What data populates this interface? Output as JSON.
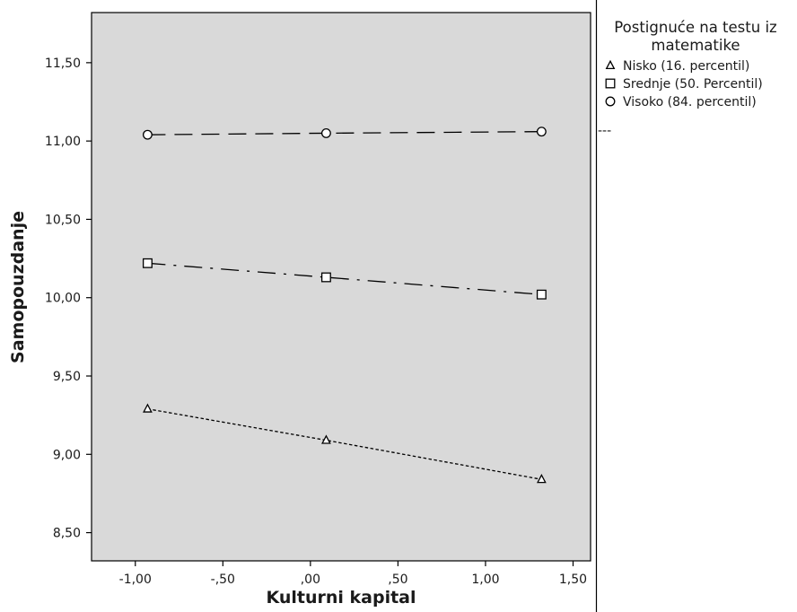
{
  "chart_data": {
    "type": "line",
    "xlabel": "Kulturni kapital",
    "ylabel": "Samopouzdanje",
    "xlim": [
      -1.25,
      1.6
    ],
    "ylim": [
      8.32,
      11.82
    ],
    "x_ticks": [
      -1.0,
      -0.5,
      0.0,
      0.5,
      1.0,
      1.5
    ],
    "x_tick_labels": [
      "-1,00",
      "-,50",
      ",00",
      ",50",
      "1,00",
      "1,50"
    ],
    "y_ticks": [
      8.5,
      9.0,
      9.5,
      10.0,
      10.5,
      11.0,
      11.5
    ],
    "y_tick_labels": [
      "8,50",
      "9,00",
      "9,50",
      "10,00",
      "10,50",
      "11,00",
      "11,50"
    ],
    "x": [
      -0.93,
      0.09,
      1.32
    ],
    "legend": {
      "title_lines": [
        "Postignuće na testu iz",
        "matematike"
      ],
      "placement": "right",
      "extra_entry": "---"
    },
    "series": [
      {
        "name": "Nisko (16. percentil)",
        "marker": "triangle",
        "dash": "dotted",
        "values": [
          9.29,
          9.09,
          8.84
        ]
      },
      {
        "name": "Srednje (50. Percentil)",
        "marker": "square",
        "dash": "dash-dot",
        "values": [
          10.22,
          10.13,
          10.02
        ]
      },
      {
        "name": "Visoko (84. percentil)",
        "marker": "circle",
        "dash": "long-dash",
        "values": [
          11.04,
          11.05,
          11.06
        ]
      }
    ]
  }
}
